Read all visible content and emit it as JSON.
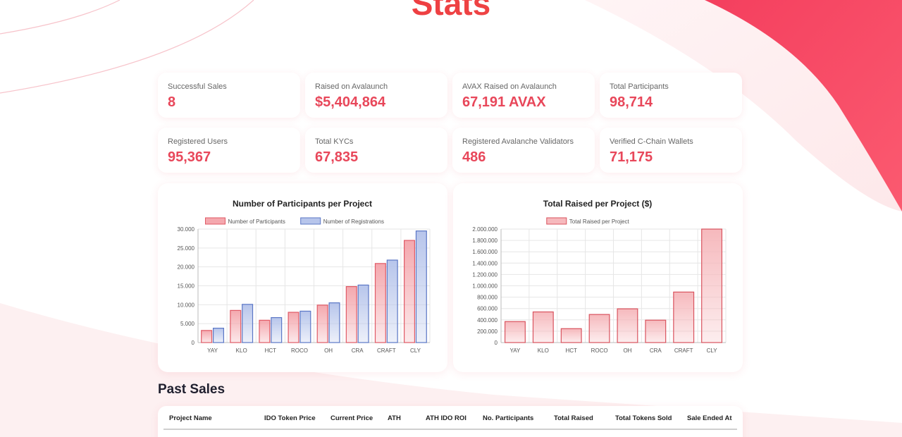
{
  "header": {
    "title": "Stats"
  },
  "stats": [
    {
      "label": "Successful Sales",
      "value": "8"
    },
    {
      "label": "Raised on Avalaunch",
      "value": "$5,404,864"
    },
    {
      "label": "AVAX Raised on Avalaunch",
      "value": "67,191 AVAX"
    },
    {
      "label": "Total Participants",
      "value": "98,714"
    },
    {
      "label": "Registered Users",
      "value": "95,367"
    },
    {
      "label": "Total KYCs",
      "value": "67,835"
    },
    {
      "label": "Registered Avalanche Validators",
      "value": "486"
    },
    {
      "label": "Verified C-Chain Wallets",
      "value": "71,175"
    }
  ],
  "colors": {
    "accent": "#e8475a",
    "participants_stroke": "#e05a66",
    "participants_fill": "#f4a8ae",
    "registrations_stroke": "#5b77c6",
    "registrations_fill": "#b7c5eb",
    "raised_stroke": "#d9535e",
    "raised_fill": "#f6b9bd"
  },
  "chart_data": [
    {
      "type": "bar",
      "title": "Number of Participants per Project",
      "categories": [
        "YAY",
        "KLO",
        "HCT",
        "ROCO",
        "OH",
        "CRA",
        "CRAFT",
        "CLY"
      ],
      "series": [
        {
          "name": "Number of Participants",
          "values": [
            3200,
            8500,
            5900,
            8000,
            9900,
            14800,
            20900,
            27000
          ]
        },
        {
          "name": "Number of Registrations",
          "values": [
            3800,
            10100,
            6600,
            8300,
            10500,
            15200,
            21800,
            29500
          ]
        }
      ],
      "ylim": [
        0,
        30000
      ],
      "yticks": [
        0,
        5000,
        10000,
        15000,
        20000,
        25000,
        30000
      ],
      "ytick_labels": [
        "0",
        "5.000",
        "10.000",
        "15.000",
        "20.000",
        "25.000",
        "30.000"
      ],
      "legend": "top-center",
      "grid": true
    },
    {
      "type": "bar",
      "title": "Total Raised per Project ($)",
      "categories": [
        "YAY",
        "KLO",
        "HCT",
        "ROCO",
        "OH",
        "CRA",
        "CRAFT",
        "CLY"
      ],
      "series": [
        {
          "name": "Total Raised per Project",
          "values": [
            370000,
            540000,
            245000,
            495000,
            595000,
            395000,
            890000,
            2000000
          ]
        }
      ],
      "ylim": [
        0,
        2000000
      ],
      "yticks": [
        0,
        200000,
        400000,
        600000,
        800000,
        1000000,
        1200000,
        1400000,
        1600000,
        1800000,
        2000000
      ],
      "ytick_labels": [
        "0",
        "200.000",
        "400.000",
        "600.000",
        "800.000",
        "1.000.000",
        "1.200.000",
        "1.400.000",
        "1.600.000",
        "1.800.000",
        "2.000.000"
      ],
      "legend": "top-center",
      "grid": true
    }
  ],
  "past_sales": {
    "title": "Past Sales",
    "columns": [
      "Project Name",
      "IDO Token Price",
      "Current Price",
      "ATH",
      "ATH IDO ROI",
      "No. Participants",
      "Total Raised",
      "Total Tokens Sold",
      "Sale Ended At"
    ]
  }
}
